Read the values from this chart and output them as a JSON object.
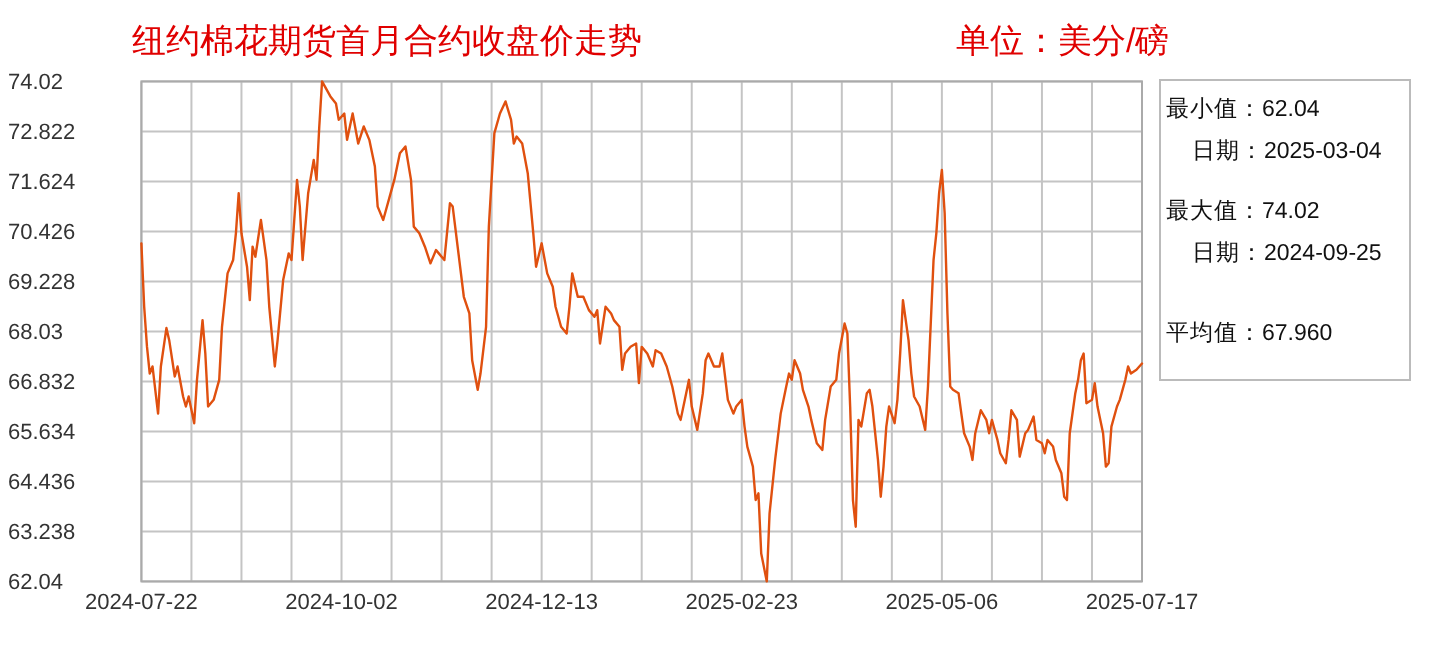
{
  "chart_data": {
    "type": "line",
    "title": "纽约棉花期货首月合约收盘价走势",
    "subtitle": "单位：美分/磅",
    "annotations": [
      "最小值：62.04",
      "日期：2025-03-04",
      "最大值：74.02",
      "日期：2024-09-25",
      "平均值：67.960"
    ],
    "x": [
      "2024-07-22",
      "2024-07-23",
      "2024-07-24",
      "2024-07-25",
      "2024-07-26",
      "2024-07-28",
      "2024-07-29",
      "2024-07-31",
      "2024-08-01",
      "2024-08-03",
      "2024-08-04",
      "2024-08-06",
      "2024-08-07",
      "2024-08-08",
      "2024-08-10",
      "2024-08-11",
      "2024-08-13",
      "2024-08-14",
      "2024-08-15",
      "2024-08-17",
      "2024-08-19",
      "2024-08-20",
      "2024-08-22",
      "2024-08-24",
      "2024-08-25",
      "2024-08-26",
      "2024-08-27",
      "2024-08-29",
      "2024-08-30",
      "2024-08-31",
      "2024-09-01",
      "2024-09-03",
      "2024-09-05",
      "2024-09-06",
      "2024-09-08",
      "2024-09-09",
      "2024-09-11",
      "2024-09-13",
      "2024-09-14",
      "2024-09-16",
      "2024-09-17",
      "2024-09-18",
      "2024-09-20",
      "2024-09-22",
      "2024-09-23",
      "2024-09-24",
      "2024-09-25",
      "2024-09-28",
      "2024-09-30",
      "2024-10-01",
      "2024-10-03",
      "2024-10-04",
      "2024-10-06",
      "2024-10-08",
      "2024-10-10",
      "2024-10-12",
      "2024-10-14",
      "2024-10-15",
      "2024-10-17",
      "2024-10-19",
      "2024-10-21",
      "2024-10-23",
      "2024-10-25",
      "2024-10-27",
      "2024-10-28",
      "2024-10-30",
      "2024-11-01",
      "2024-11-03",
      "2024-11-05",
      "2024-11-06",
      "2024-11-08",
      "2024-11-10",
      "2024-11-11",
      "2024-11-15",
      "2024-11-17",
      "2024-11-18",
      "2024-11-20",
      "2024-11-21",
      "2024-11-23",
      "2024-11-24",
      "2024-11-26",
      "2024-11-28",
      "2024-11-30",
      "2024-12-02",
      "2024-12-03",
      "2024-12-04",
      "2024-12-06",
      "2024-12-08",
      "2024-12-10",
      "2024-12-11",
      "2024-12-13",
      "2024-12-15",
      "2024-12-17",
      "2024-12-18",
      "2024-12-20",
      "2024-12-22",
      "2024-12-23",
      "2024-12-24",
      "2024-12-26",
      "2024-12-28",
      "2024-12-30",
      "2025-01-01",
      "2025-01-02",
      "2025-01-03",
      "2025-01-05",
      "2025-01-07",
      "2025-01-08",
      "2025-01-10",
      "2025-01-11",
      "2025-01-12",
      "2025-01-14",
      "2025-01-16",
      "2025-01-17",
      "2025-01-18",
      "2025-01-20",
      "2025-01-22",
      "2025-01-23",
      "2025-01-25",
      "2025-01-27",
      "2025-01-29",
      "2025-01-31",
      "2025-02-01",
      "2025-02-03",
      "2025-02-04",
      "2025-02-05",
      "2025-02-07",
      "2025-02-09",
      "2025-02-10",
      "2025-02-11",
      "2025-02-13",
      "2025-02-15",
      "2025-02-16",
      "2025-02-18",
      "2025-02-20",
      "2025-02-21",
      "2025-02-23",
      "2025-02-24",
      "2025-02-25",
      "2025-02-27",
      "2025-02-28",
      "2025-03-01",
      "2025-03-02",
      "2025-03-04",
      "2025-03-05",
      "2025-03-07",
      "2025-03-09",
      "2025-03-11",
      "2025-03-12",
      "2025-03-13",
      "2025-03-14",
      "2025-03-16",
      "2025-03-17",
      "2025-03-19",
      "2025-03-20",
      "2025-03-22",
      "2025-03-24",
      "2025-03-25",
      "2025-03-27",
      "2025-03-29",
      "2025-03-30",
      "2025-04-01",
      "2025-04-02",
      "2025-04-03",
      "2025-04-04",
      "2025-04-05",
      "2025-04-06",
      "2025-04-07",
      "2025-04-09",
      "2025-04-10",
      "2025-04-11",
      "2025-04-13",
      "2025-04-14",
      "2025-04-15",
      "2025-04-16",
      "2025-04-17",
      "2025-04-19",
      "2025-04-20",
      "2025-04-21",
      "2025-04-22",
      "2025-04-24",
      "2025-04-25",
      "2025-04-26",
      "2025-04-28",
      "2025-04-30",
      "2025-05-01",
      "2025-05-03",
      "2025-05-04",
      "2025-05-05",
      "2025-05-06",
      "2025-05-07",
      "2025-05-08",
      "2025-05-09",
      "2025-05-10",
      "2025-05-12",
      "2025-05-13",
      "2025-05-14",
      "2025-05-16",
      "2025-05-17",
      "2025-05-18",
      "2025-05-20",
      "2025-05-22",
      "2025-05-23",
      "2025-05-24",
      "2025-05-26",
      "2025-05-27",
      "2025-05-29",
      "2025-05-30",
      "2025-05-31",
      "2025-06-02",
      "2025-06-03",
      "2025-06-05",
      "2025-06-06",
      "2025-06-08",
      "2025-06-09",
      "2025-06-11",
      "2025-06-12",
      "2025-06-13",
      "2025-06-15",
      "2025-06-16",
      "2025-06-18",
      "2025-06-19",
      "2025-06-20",
      "2025-06-21",
      "2025-06-23",
      "2025-06-24",
      "2025-06-25",
      "2025-06-26",
      "2025-06-27",
      "2025-06-29",
      "2025-06-30",
      "2025-07-01",
      "2025-07-03",
      "2025-07-04",
      "2025-07-05",
      "2025-07-06",
      "2025-07-08",
      "2025-07-09",
      "2025-07-11",
      "2025-07-12",
      "2025-07-13",
      "2025-07-15",
      "2025-07-17"
    ],
    "series": [
      {
        "color": "#e0500f",
        "values": [
          70.14,
          68.62,
          67.67,
          67.02,
          67.19,
          66.06,
          67.19,
          68.11,
          67.82,
          66.95,
          67.19,
          66.47,
          66.23,
          66.47,
          65.83,
          66.87,
          68.3,
          67.5,
          66.23,
          66.39,
          66.87,
          68.14,
          69.42,
          69.74,
          70.38,
          71.34,
          70.38,
          69.58,
          68.78,
          70.06,
          69.82,
          70.7,
          69.74,
          68.62,
          67.19,
          67.82,
          69.26,
          69.9,
          69.74,
          71.66,
          71.02,
          69.74,
          71.34,
          72.14,
          71.66,
          72.94,
          74.02,
          73.66,
          73.49,
          73.1,
          73.25,
          72.62,
          73.25,
          72.53,
          72.94,
          72.62,
          71.98,
          71.02,
          70.7,
          71.18,
          71.66,
          72.3,
          72.46,
          71.66,
          70.54,
          70.38,
          70.06,
          69.66,
          69.98,
          69.9,
          69.74,
          71.1,
          71.02,
          68.86,
          68.46,
          67.34,
          66.63,
          67.02,
          68.14,
          70.54,
          72.78,
          73.25,
          73.54,
          73.1,
          72.53,
          72.7,
          72.53,
          71.82,
          70.38,
          69.58,
          70.14,
          69.42,
          69.1,
          68.62,
          68.14,
          67.98,
          68.62,
          69.42,
          68.86,
          68.86,
          68.54,
          68.38,
          68.54,
          67.74,
          68.62,
          68.46,
          68.3,
          68.14,
          67.11,
          67.5,
          67.66,
          67.74,
          66.79,
          67.66,
          67.5,
          67.19,
          67.58,
          67.5,
          67.19,
          66.71,
          66.06,
          65.91,
          66.55,
          66.87,
          66.23,
          65.67,
          66.55,
          67.34,
          67.5,
          67.19,
          67.19,
          67.5,
          66.39,
          66.06,
          66.23,
          66.39,
          65.75,
          65.27,
          64.79,
          63.99,
          64.15,
          62.71,
          62.04,
          63.67,
          64.95,
          66.06,
          66.71,
          67.02,
          66.87,
          67.34,
          67.02,
          66.63,
          66.23,
          65.91,
          65.35,
          65.19,
          65.91,
          66.71,
          66.87,
          67.5,
          68.22,
          67.98,
          66.23,
          63.99,
          63.35,
          65.91,
          65.75,
          66.55,
          66.63,
          66.23,
          64.95,
          64.07,
          64.79,
          65.75,
          66.23,
          65.83,
          66.39,
          67.5,
          68.78,
          67.82,
          67.02,
          66.47,
          66.23,
          65.67,
          66.71,
          69.74,
          70.38,
          71.34,
          71.9,
          70.86,
          68.46,
          66.71,
          66.63,
          66.55,
          66.06,
          65.59,
          65.27,
          64.95,
          65.59,
          66.14,
          65.91,
          65.59,
          65.91,
          65.43,
          65.11,
          64.87,
          65.43,
          66.14,
          65.91,
          65.03,
          65.59,
          65.67,
          65.99,
          65.43,
          65.35,
          65.11,
          65.43,
          65.27,
          64.95,
          64.63,
          64.07,
          63.99,
          65.59,
          66.55,
          66.87,
          67.34,
          67.5,
          66.31,
          66.39,
          66.79,
          66.23,
          65.59,
          64.79,
          64.87,
          65.75,
          66.23,
          66.39,
          66.87,
          67.19,
          67.02,
          67.11,
          67.26
        ]
      }
    ],
    "xlim": [
      "2024-07-22",
      "2025-07-17"
    ],
    "xticks": [
      "2024-07-22",
      {
        "value": "2024-08-09",
        "label": null
      },
      {
        "value": "2024-08-27",
        "label": null
      },
      {
        "value": "2024-09-14",
        "label": null
      },
      "2024-10-02",
      {
        "value": "2024-10-20",
        "label": null
      },
      {
        "value": "2024-11-07",
        "label": null
      },
      {
        "value": "2024-11-25",
        "label": null
      },
      "2024-12-13",
      {
        "value": "2024-12-31",
        "label": null
      },
      {
        "value": "2025-01-18",
        "label": null
      },
      {
        "value": "2025-02-05",
        "label": null
      },
      "2025-02-23",
      {
        "value": "2025-03-13",
        "label": null
      },
      {
        "value": "2025-03-31",
        "label": null
      },
      {
        "value": "2025-04-18",
        "label": null
      },
      "2025-05-06",
      {
        "value": "2025-05-24",
        "label": null
      },
      {
        "value": "2025-06-11",
        "label": null
      },
      {
        "value": "2025-06-29",
        "label": null
      },
      "2025-07-17"
    ],
    "ylim": [
      62.04,
      74.02
    ],
    "yticks": [
      74.02,
      72.822,
      71.624,
      70.426,
      69.228,
      68.03,
      66.832,
      65.634,
      64.436,
      63.238,
      62.04
    ],
    "grid": true
  }
}
